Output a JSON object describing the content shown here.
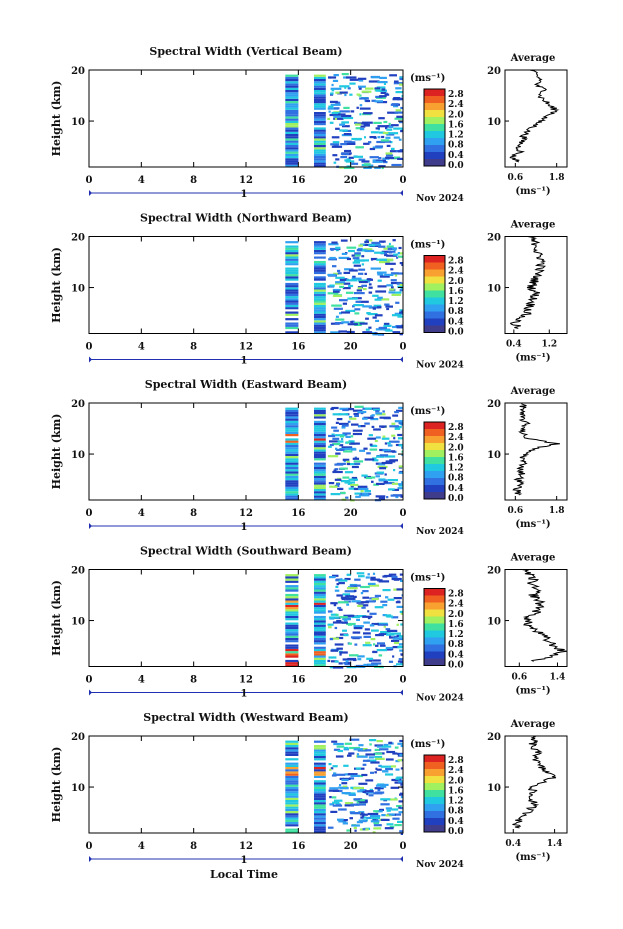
{
  "chart_data": {
    "type": "heatmap",
    "xlabel": "Local Time",
    "x_ticks": [
      "0",
      "4",
      "8",
      "12",
      "16",
      "20",
      "0"
    ],
    "day_marker": "1",
    "date_label": "Nov 2024",
    "ylabel": "Height (km)",
    "y_ticks": [
      "20",
      "10"
    ],
    "xlim": [
      0,
      24
    ],
    "ylim": [
      1,
      20
    ],
    "colorbar": {
      "unit": "(ms⁻¹)",
      "ticks": [
        "2.8",
        "2.4",
        "2.0",
        "1.6",
        "1.2",
        "0.8",
        "0.4",
        "0.0"
      ],
      "colors": [
        "#dd2222",
        "#f06020",
        "#f8a030",
        "#f0e040",
        "#a0f060",
        "#40e0a0",
        "#20c8e0",
        "#30a0f0",
        "#3070e0",
        "#2040c0",
        "#403c8c"
      ]
    },
    "panels": [
      {
        "title": "Spectral Width (Vertical Beam)",
        "avg_title": "Average",
        "avg_xticks": [
          "0.6",
          "1.8"
        ],
        "avg_xlim": [
          0.3,
          2.1
        ],
        "avg_unit": "(ms⁻¹)",
        "avg_profile": [
          [
            20,
            1.05
          ],
          [
            19,
            1.2
          ],
          [
            18,
            1.35
          ],
          [
            17,
            1.2
          ],
          [
            16,
            1.5
          ],
          [
            15,
            1.3
          ],
          [
            14,
            1.45
          ],
          [
            13,
            1.6
          ],
          [
            12,
            1.8
          ],
          [
            11,
            1.55
          ],
          [
            10,
            1.3
          ],
          [
            9,
            1.15
          ],
          [
            8,
            0.95
          ],
          [
            7,
            0.85
          ],
          [
            6,
            0.8
          ],
          [
            5,
            0.7
          ],
          [
            4,
            0.75
          ],
          [
            3,
            0.5
          ],
          [
            2,
            0.7
          ]
        ]
      },
      {
        "title": "Spectral Width (Northward Beam)",
        "avg_title": "Average",
        "avg_xticks": [
          "0.4",
          "1.2"
        ],
        "avg_xlim": [
          0.2,
          1.6
        ],
        "avg_unit": "(ms⁻¹)",
        "avg_profile": [
          [
            20,
            0.75
          ],
          [
            19,
            0.85
          ],
          [
            18,
            0.95
          ],
          [
            17,
            0.9
          ],
          [
            16,
            1.0
          ],
          [
            15,
            1.05
          ],
          [
            14,
            1.0
          ],
          [
            13,
            0.95
          ],
          [
            12,
            0.9
          ],
          [
            11,
            0.85
          ],
          [
            10,
            0.8
          ],
          [
            9,
            0.9
          ],
          [
            8,
            0.85
          ],
          [
            7,
            0.8
          ],
          [
            6,
            0.75
          ],
          [
            5,
            0.7
          ],
          [
            4,
            0.55
          ],
          [
            3,
            0.4
          ],
          [
            2,
            0.5
          ]
        ]
      },
      {
        "title": "Spectral Width (Eastward Beam)",
        "avg_title": "Average",
        "avg_xticks": [
          "0.6",
          "1.8"
        ],
        "avg_xlim": [
          0.3,
          2.1
        ],
        "avg_unit": "(ms⁻¹)",
        "avg_profile": [
          [
            20,
            0.8
          ],
          [
            19,
            0.85
          ],
          [
            18,
            0.75
          ],
          [
            17,
            0.8
          ],
          [
            16,
            0.9
          ],
          [
            15,
            0.85
          ],
          [
            14,
            0.8
          ],
          [
            13,
            1.0
          ],
          [
            12,
            1.8
          ],
          [
            11,
            1.1
          ],
          [
            10,
            0.9
          ],
          [
            9,
            0.8
          ],
          [
            8,
            0.85
          ],
          [
            7,
            0.75
          ],
          [
            6,
            0.8
          ],
          [
            5,
            0.7
          ],
          [
            4,
            0.75
          ],
          [
            3,
            0.65
          ],
          [
            2,
            0.7
          ]
        ]
      },
      {
        "title": "Spectral Width (Southward Beam)",
        "avg_title": "Average",
        "avg_xticks": [
          "0.6",
          "1.4"
        ],
        "avg_xlim": [
          0.3,
          1.6
        ],
        "avg_unit": "(ms⁻¹)",
        "avg_profile": [
          [
            20,
            0.75
          ],
          [
            19,
            0.8
          ],
          [
            18,
            0.9
          ],
          [
            17,
            0.85
          ],
          [
            16,
            0.95
          ],
          [
            15,
            0.9
          ],
          [
            14,
            1.0
          ],
          [
            13,
            1.05
          ],
          [
            12,
            1.0
          ],
          [
            11,
            0.85
          ],
          [
            10,
            0.75
          ],
          [
            9,
            0.8
          ],
          [
            8,
            0.95
          ],
          [
            7,
            1.1
          ],
          [
            6,
            1.2
          ],
          [
            5,
            1.35
          ],
          [
            4,
            1.5
          ],
          [
            3,
            1.3
          ],
          [
            2,
            0.9
          ]
        ]
      },
      {
        "title": "Spectral Width (Westward Beam)",
        "avg_title": "Average",
        "avg_xticks": [
          "0.4",
          "1.4"
        ],
        "avg_xlim": [
          0.2,
          1.7
        ],
        "avg_unit": "(ms⁻¹)",
        "avg_profile": [
          [
            20,
            0.85
          ],
          [
            19,
            0.9
          ],
          [
            18,
            0.85
          ],
          [
            17,
            0.95
          ],
          [
            16,
            1.0
          ],
          [
            15,
            0.95
          ],
          [
            14,
            1.05
          ],
          [
            13,
            1.2
          ],
          [
            12,
            1.4
          ],
          [
            11,
            1.1
          ],
          [
            10,
            0.9
          ],
          [
            9,
            0.85
          ],
          [
            8,
            0.8
          ],
          [
            7,
            0.9
          ],
          [
            6,
            0.85
          ],
          [
            5,
            0.75
          ],
          [
            4,
            0.65
          ],
          [
            3,
            0.45
          ],
          [
            2,
            0.55
          ]
        ]
      }
    ]
  }
}
